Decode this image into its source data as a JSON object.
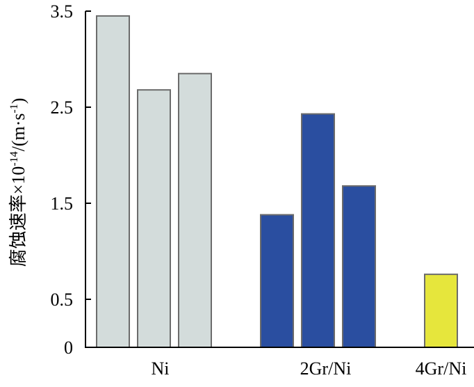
{
  "chart_data": {
    "type": "bar",
    "ylabel": "腐蚀速率×10-14/(m·s-1)",
    "ylabel_parts": {
      "main": "腐蚀速率×10",
      "exp1": "-14",
      "mid": "/(m·s",
      "exp2": "-1",
      "end": ")"
    },
    "ylim": [
      0,
      3.5
    ],
    "yticks": [
      {
        "value": 0,
        "label": "0"
      },
      {
        "value": 0.5,
        "label": "0.5"
      },
      {
        "value": 1.5,
        "label": "1.5"
      },
      {
        "value": 2.5,
        "label": "2.5"
      },
      {
        "value": 3.5,
        "label": "3.5"
      }
    ],
    "grid": false,
    "groups": [
      {
        "label": "Ni",
        "color": "#d3dcdb",
        "values": [
          3.45,
          2.68,
          2.85
        ]
      },
      {
        "label": "2Gr/Ni",
        "color": "#2a4ea0",
        "values": [
          1.38,
          2.43,
          1.68
        ]
      },
      {
        "label": "4Gr/Ni",
        "color": "#e6e63c",
        "values": [
          0.76
        ]
      }
    ]
  }
}
